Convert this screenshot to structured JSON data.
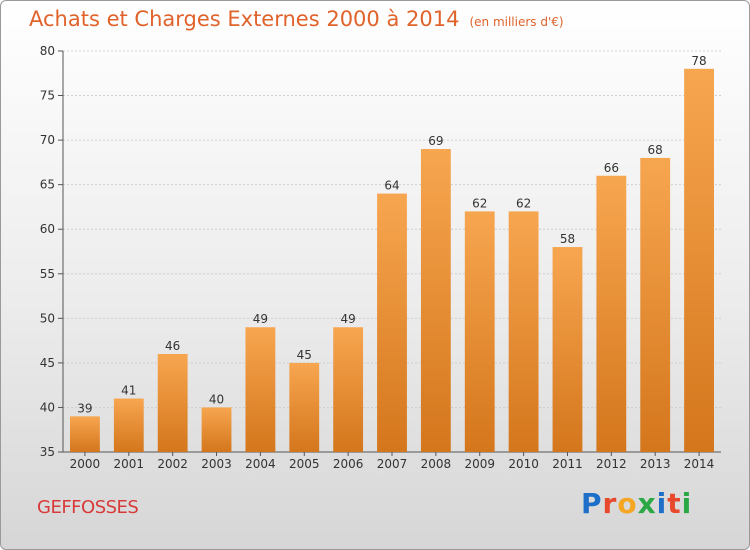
{
  "title": "Achats et Charges Externes 2000 à 2014",
  "subtitle": "(en milliers d'€)",
  "city": "GEFFOSSES",
  "logo": {
    "letters": [
      "P",
      "r",
      "o",
      "x",
      "i",
      "t",
      "i"
    ],
    "colors": [
      "#1e6fc8",
      "#e8482c",
      "#f5a623",
      "#2aa845",
      "#1e6fc8",
      "#e8482c",
      "#2aa845"
    ]
  },
  "colors": {
    "title": "#e0632b",
    "bar_top": "#f7a650",
    "bar_bottom": "#d4761c",
    "city": "#d83a3a"
  },
  "chart_data": {
    "type": "bar",
    "title": "Achats et Charges Externes 2000 à 2014",
    "subtitle": "(en milliers d'€)",
    "xlabel": "",
    "ylabel": "",
    "categories": [
      "2000",
      "2001",
      "2002",
      "2003",
      "2004",
      "2005",
      "2006",
      "2007",
      "2008",
      "2009",
      "2010",
      "2011",
      "2012",
      "2013",
      "2014"
    ],
    "values": [
      39,
      41,
      46,
      40,
      49,
      45,
      49,
      64,
      69,
      62,
      62,
      58,
      66,
      68,
      78
    ],
    "ylim": [
      35,
      80
    ],
    "yticks": [
      35,
      40,
      45,
      50,
      55,
      60,
      65,
      70,
      75,
      80
    ],
    "grid": true,
    "legend": "none"
  }
}
